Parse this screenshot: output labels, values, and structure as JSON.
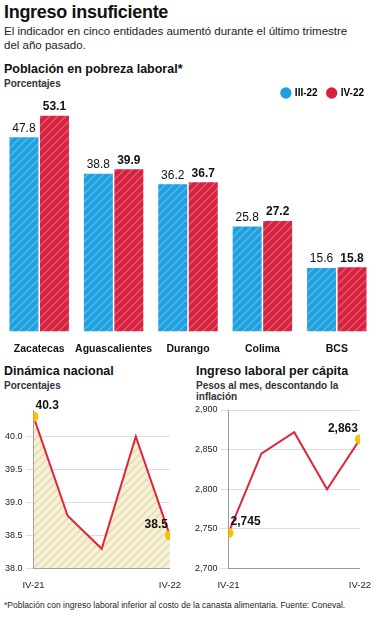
{
  "header": {
    "title": "Ingreso insuficiente",
    "subtitle": "El indicador en cinco entidades aumentó durante el último trimestre del año pasado."
  },
  "chart_data": [
    {
      "type": "bar",
      "title": "Población en pobreza laboral*",
      "subtitle": "Porcentajes",
      "categories": [
        "Zacatecas",
        "Aguascalientes",
        "Durango",
        "Colima",
        "BCS"
      ],
      "series": [
        {
          "name": "III-22",
          "color": "#1ea0e0",
          "values": [
            47.8,
            38.8,
            36.2,
            25.8,
            15.6
          ]
        },
        {
          "name": "IV-22",
          "color": "#d7213f",
          "values": [
            53.1,
            39.9,
            36.7,
            27.2,
            15.8
          ]
        }
      ],
      "ylim": [
        0,
        55
      ],
      "legend": "top-right",
      "data_labels": true,
      "tick_labels": "x",
      "grid": false
    },
    {
      "type": "area",
      "title": "Dinámica nacional",
      "subtitle": "Porcentajes",
      "categories": [
        "IV-21",
        null,
        null,
        null,
        "IV-22"
      ],
      "values": [
        40.3,
        38.8,
        38.3,
        40.0,
        38.5
      ],
      "value_labels": [
        "40.3",
        null,
        null,
        null,
        "38.5"
      ],
      "color": "#e0253c",
      "marker": "circle",
      "data_labels": true,
      "ylim": [
        38.0,
        40.4
      ],
      "yticks": [
        {
          "value": 38,
          "label": "38.0"
        },
        {
          "value": 38.5,
          "label": "38.5"
        },
        {
          "value": 39,
          "label": "39.0"
        },
        {
          "value": 39.5,
          "label": "39.5"
        },
        {
          "value": 40,
          "label": "40.0"
        }
      ],
      "grid": true
    },
    {
      "type": "line",
      "title": "Ingreso laboral per cápita",
      "subtitle": "Pesos al mes, descontando la inflación",
      "categories": [
        "IV-21",
        null,
        null,
        null,
        "IV-22"
      ],
      "values": [
        2745,
        2845,
        2872,
        2800,
        2863
      ],
      "value_labels": [
        "2,745",
        null,
        null,
        null,
        "2,863"
      ],
      "color": "#e0253c",
      "marker": "circle",
      "data_labels": true,
      "ylim": [
        2700,
        2900
      ],
      "yticks": [
        {
          "value": 2700,
          "label": "2,700"
        },
        {
          "value": 2750,
          "label": "2,750"
        },
        {
          "value": 2800,
          "label": "2,800"
        },
        {
          "value": 2850,
          "label": "2,850"
        },
        {
          "value": 2900,
          "label": "2,900"
        }
      ],
      "grid": true
    }
  ],
  "footnote": "*Población con ingreso laboral inferior al costo de la canasta alimentaria. Fuente: Coneval."
}
